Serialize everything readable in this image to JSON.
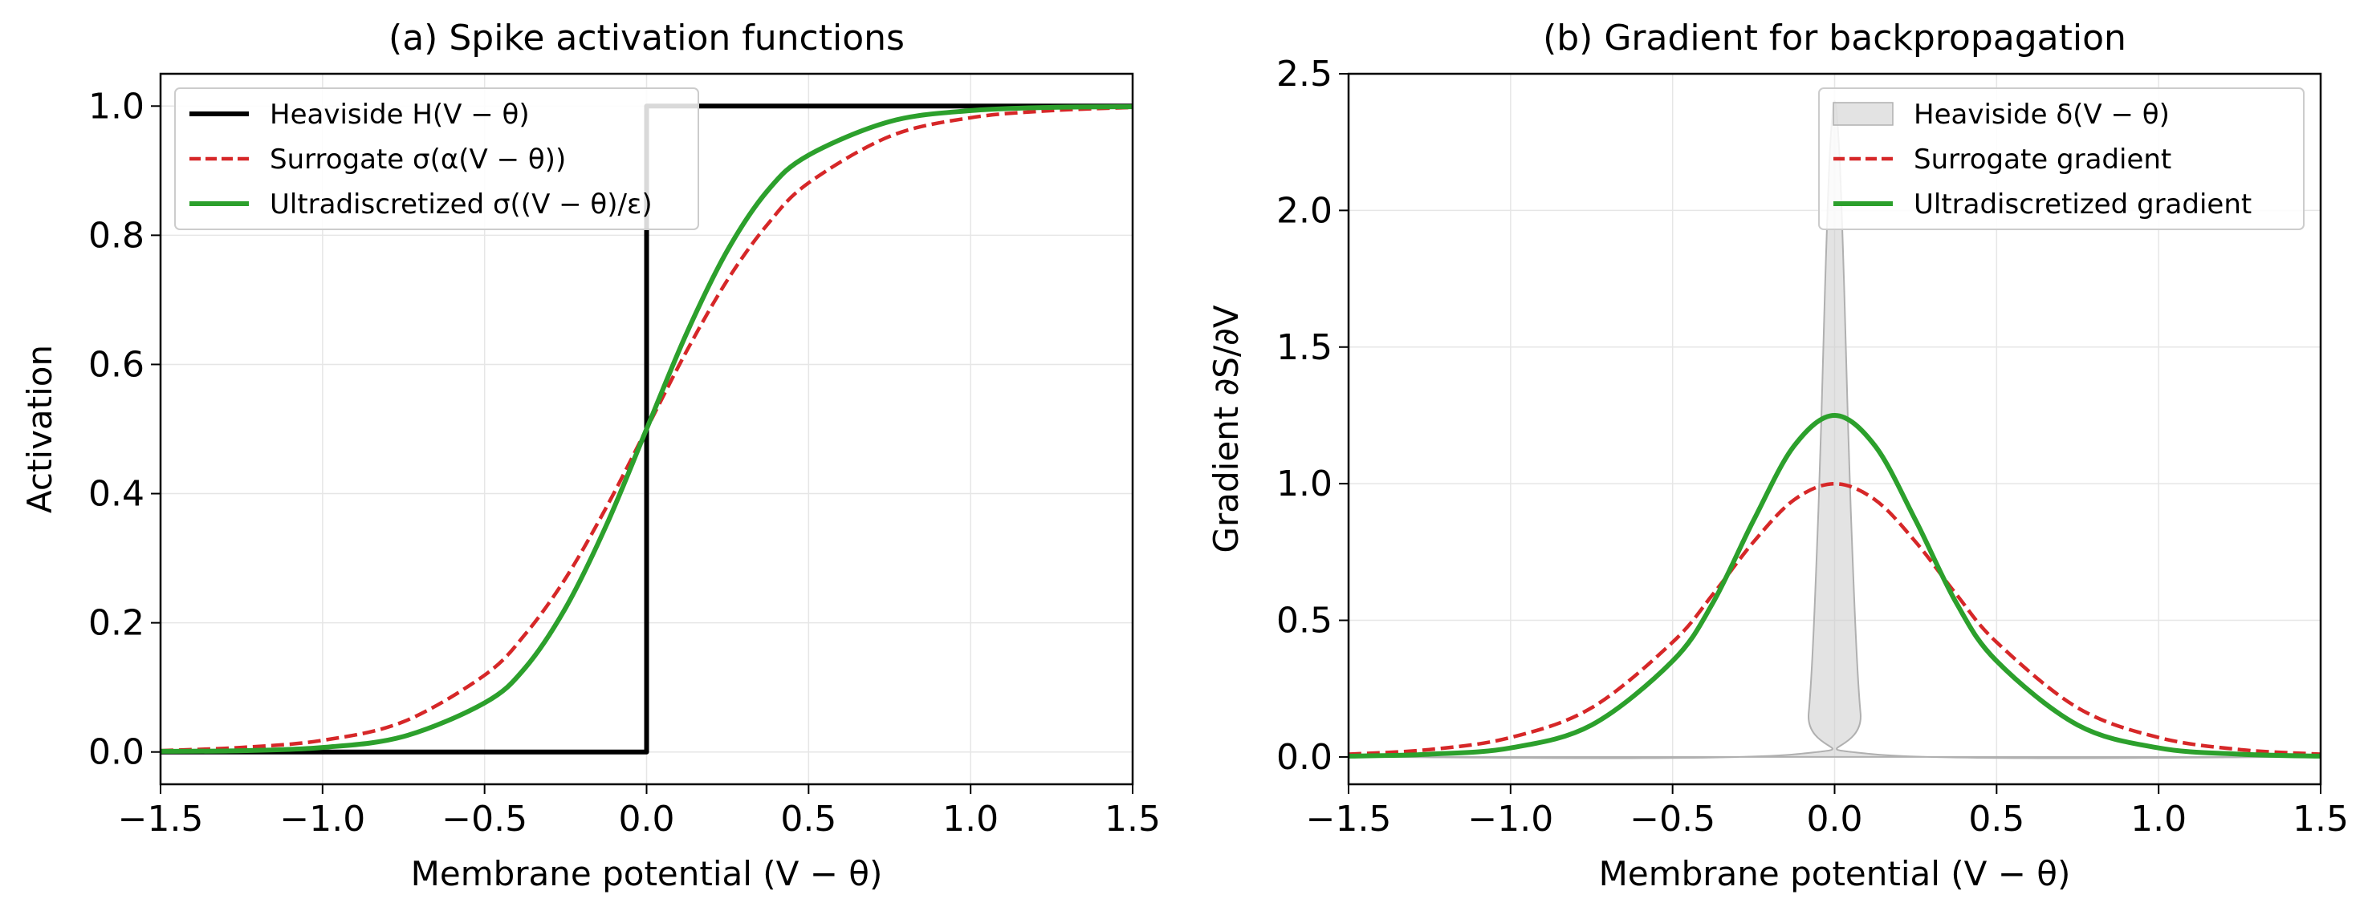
{
  "chart_data": [
    {
      "type": "line",
      "title": "(a) Spike activation functions",
      "xlabel": "Membrane potential (V − θ)",
      "ylabel": "Activation",
      "xlim": [
        -1.5,
        1.5
      ],
      "ylim": [
        -0.05,
        1.05
      ],
      "xticks": [
        -1.5,
        -1.0,
        -0.5,
        0.0,
        0.5,
        1.0,
        1.5
      ],
      "xtick_labels": [
        "−1.5",
        "−1.0",
        "−0.5",
        "0.0",
        "0.5",
        "1.0",
        "1.5"
      ],
      "yticks": [
        0.0,
        0.2,
        0.4,
        0.6,
        0.8,
        1.0
      ],
      "ytick_labels": [
        "0.0",
        "0.2",
        "0.4",
        "0.6",
        "0.8",
        "1.0"
      ],
      "grid": true,
      "legend_position": "top-left",
      "series": [
        {
          "name": "Heaviside H(V − θ)",
          "color": "#000000",
          "style": "solid",
          "x": [
            -1.5,
            -1.25,
            -1.0,
            -0.75,
            -0.5,
            -0.25,
            0.0,
            0.0,
            0.25,
            0.5,
            0.75,
            1.0,
            1.25,
            1.5
          ],
          "y": [
            0,
            0,
            0,
            0,
            0,
            0,
            0,
            1,
            1,
            1,
            1,
            1,
            1,
            1
          ]
        },
        {
          "name": "Surrogate σ(α(V − θ))",
          "color": "#d62728",
          "style": "dashed",
          "x": [
            -1.5,
            -1.25,
            -1.0,
            -0.75,
            -0.5,
            -0.375,
            -0.25,
            -0.125,
            0.0,
            0.125,
            0.25,
            0.375,
            0.5,
            0.75,
            1.0,
            1.25,
            1.5
          ],
          "y": [
            0.002,
            0.007,
            0.018,
            0.047,
            0.119,
            0.182,
            0.269,
            0.378,
            0.5,
            0.622,
            0.731,
            0.818,
            0.881,
            0.953,
            0.982,
            0.993,
            0.998
          ]
        },
        {
          "name": "Ultradiscretized σ((V − θ)/ε)",
          "color": "#2ca02c",
          "style": "solid",
          "x": [
            -1.5,
            -1.25,
            -1.0,
            -0.75,
            -0.5,
            -0.375,
            -0.25,
            -0.125,
            0.0,
            0.125,
            0.25,
            0.375,
            0.5,
            0.75,
            1.0,
            1.25,
            1.5
          ],
          "y": [
            0.001,
            0.002,
            0.007,
            0.024,
            0.076,
            0.13,
            0.223,
            0.35,
            0.5,
            0.65,
            0.777,
            0.87,
            0.924,
            0.976,
            0.993,
            0.998,
            0.999
          ]
        }
      ]
    },
    {
      "type": "line",
      "title": "(b) Gradient for backpropagation",
      "xlabel": "Membrane potential (V − θ)",
      "ylabel": "Gradient ∂S/∂V",
      "xlim": [
        -1.5,
        1.5
      ],
      "ylim": [
        -0.1,
        2.5
      ],
      "xticks": [
        -1.5,
        -1.0,
        -0.5,
        0.0,
        0.5,
        1.0,
        1.5
      ],
      "xtick_labels": [
        "−1.5",
        "−1.0",
        "−0.5",
        "0.0",
        "0.5",
        "1.0",
        "1.5"
      ],
      "yticks": [
        0.0,
        0.5,
        1.0,
        1.5,
        2.0,
        2.5
      ],
      "ytick_labels": [
        "0.0",
        "0.5",
        "1.0",
        "1.5",
        "2.0",
        "2.5"
      ],
      "grid": true,
      "legend_position": "top-right",
      "series": [
        {
          "name": "Heaviside δ(V − θ)",
          "color": "#cccccc",
          "style": "filled-area",
          "x": [
            -1.5,
            -0.12,
            -0.08,
            -0.05,
            -0.03,
            -0.015,
            0.0,
            0.015,
            0.03,
            0.05,
            0.08,
            0.12,
            1.5
          ],
          "y": [
            0,
            0.01,
            0.16,
            0.9,
            1.7,
            2.2,
            2.4,
            2.2,
            1.7,
            0.9,
            0.16,
            0.01,
            0
          ]
        },
        {
          "name": "Surrogate gradient",
          "color": "#d62728",
          "style": "dashed",
          "x": [
            -1.5,
            -1.25,
            -1.0,
            -0.75,
            -0.5,
            -0.375,
            -0.25,
            -0.125,
            0.0,
            0.125,
            0.25,
            0.375,
            0.5,
            0.75,
            1.0,
            1.25,
            1.5
          ],
          "y": [
            0.01,
            0.027,
            0.071,
            0.18,
            0.42,
            0.596,
            0.787,
            0.941,
            1.0,
            0.941,
            0.787,
            0.596,
            0.42,
            0.18,
            0.071,
            0.027,
            0.01
          ]
        },
        {
          "name": "Ultradiscretized gradient",
          "color": "#2ca02c",
          "style": "solid",
          "x": [
            -1.5,
            -1.25,
            -1.0,
            -0.75,
            -0.5,
            -0.375,
            -0.25,
            -0.125,
            0.0,
            0.125,
            0.25,
            0.375,
            0.5,
            0.75,
            1.0,
            1.25,
            1.5
          ],
          "y": [
            0.003,
            0.01,
            0.033,
            0.117,
            0.351,
            0.565,
            0.866,
            1.138,
            1.25,
            1.138,
            0.866,
            0.565,
            0.351,
            0.117,
            0.033,
            0.01,
            0.003
          ]
        }
      ]
    }
  ]
}
